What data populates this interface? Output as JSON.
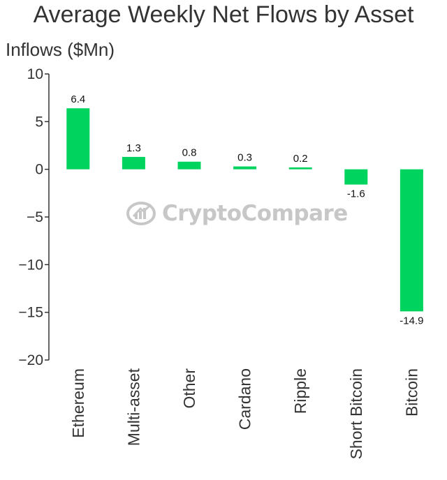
{
  "chart_data": {
    "type": "bar",
    "title": "Average Weekly Net Flows by Asset",
    "ylabel": "Inflows ($Mn)",
    "xlabel": "",
    "categories": [
      "Ethereum",
      "Multi-asset",
      "Other",
      "Cardano",
      "Ripple",
      "Short Bitcoin",
      "Bitcoin"
    ],
    "values": [
      6.4,
      1.3,
      0.8,
      0.3,
      0.2,
      -1.6,
      -14.9
    ],
    "data_labels": [
      "6.4",
      "1.3",
      "0.8",
      "0.3",
      "0.2",
      "-1.6",
      "-14.9"
    ],
    "ylim": [
      -20,
      10
    ],
    "yticks": [
      10,
      5,
      0,
      -5,
      -10,
      -15,
      -20
    ],
    "ytick_labels": [
      "10",
      "5",
      "0",
      "−5",
      "−10",
      "−15",
      "−20"
    ],
    "grid": false,
    "bar_color": "#00d45f",
    "axis_color": "#333333"
  },
  "watermark": {
    "text": "CryptoCompare",
    "icon": "cryptocompare-logo-icon"
  }
}
